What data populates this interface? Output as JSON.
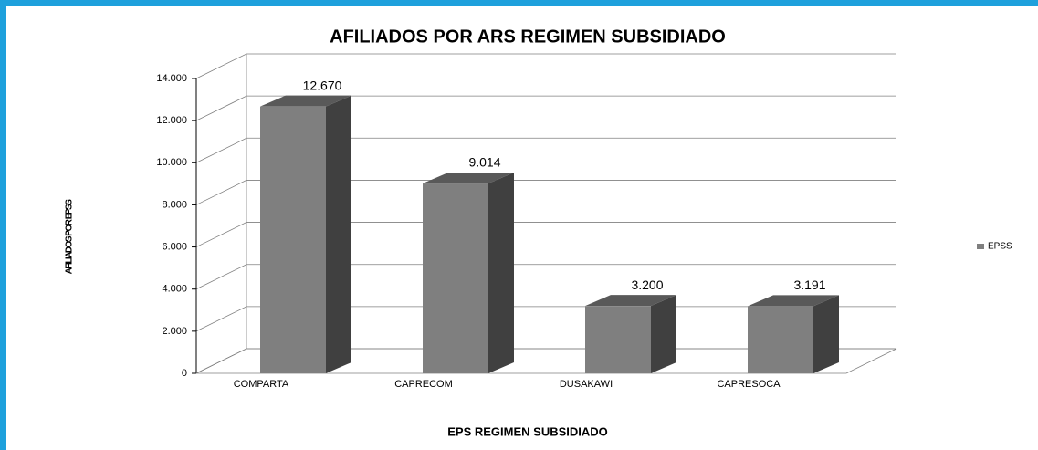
{
  "chart_data": {
    "type": "bar3d",
    "title": "AFILIADOS POR ARS REGIMEN SUBSIDIADO",
    "x_label": "EPS REGIMEN SUBSIDIADO",
    "y_label": "AFILIADOS POR EPSS",
    "categories": [
      "COMPARTA",
      "CAPRECOM",
      "DUSAKAWI",
      "CAPRESOCA"
    ],
    "series": [
      {
        "name": "EPSS",
        "color": "#7f7f7f",
        "values": [
          12670,
          9014,
          3200,
          3191
        ],
        "value_labels": [
          "12.670",
          "9.014",
          "3.200",
          "3.191"
        ]
      }
    ],
    "ylim": [
      0,
      14000
    ],
    "yticks": [
      0,
      {
        "value": 2000,
        "label": "2.000"
      },
      {
        "value": 4000,
        "label": "4.000"
      },
      {
        "value": 6000,
        "label": "6.000"
      },
      {
        "value": 8000,
        "label": "8.000"
      },
      {
        "value": 10000,
        "label": "10.000"
      },
      {
        "value": 12000,
        "label": "12.000"
      },
      {
        "value": 14000,
        "label": "14.000"
      }
    ],
    "grid": true,
    "legend": "right"
  }
}
